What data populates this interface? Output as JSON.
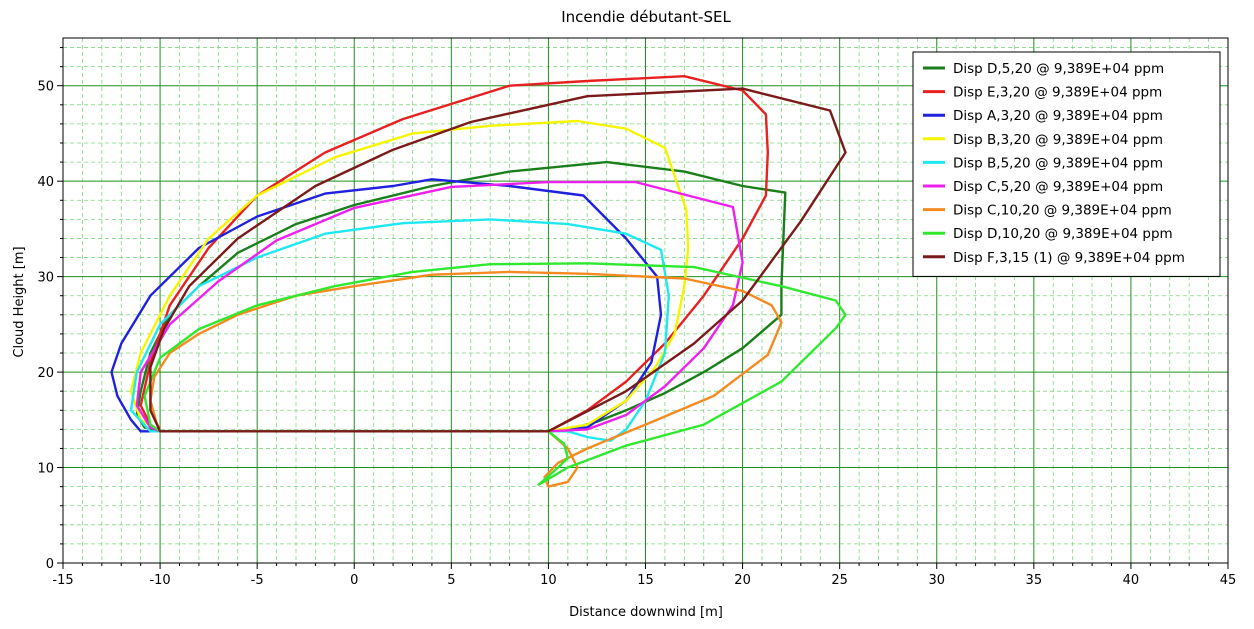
{
  "chart_data": {
    "type": "line",
    "title": "Incendie débutant-SEL",
    "xlabel": "Distance downwind [m]",
    "ylabel": "Cloud Height [m]",
    "xlim": [
      -15,
      45
    ],
    "ylim": [
      0,
      55
    ],
    "xticks": [
      -15,
      -10,
      -5,
      0,
      5,
      10,
      15,
      20,
      25,
      30,
      35,
      40,
      45
    ],
    "yticks": [
      0,
      10,
      20,
      30,
      40,
      50
    ],
    "grid": true,
    "legend_position": "top-right",
    "series": [
      {
        "name": "Disp D,5,20 @ 9,389E+04 ppm",
        "color": "#1a7f1a",
        "x": [
          -10,
          10,
          11,
          12.5,
          14,
          16,
          18,
          20,
          22,
          22,
          22.2,
          20,
          17,
          13,
          8,
          4,
          0,
          -3,
          -6,
          -8,
          -9.5,
          -10.5,
          -11,
          -11.2,
          -10.8,
          -10
        ],
        "y": [
          13.8,
          13.8,
          14,
          14.8,
          16,
          17.8,
          20,
          22.5,
          26,
          29,
          38.8,
          39.5,
          41,
          42,
          41,
          39.5,
          37.5,
          35.5,
          32.5,
          29,
          26,
          22,
          18,
          15.5,
          14.2,
          13.8
        ]
      },
      {
        "name": "Disp E,3,20 @ 9,389E+04 ppm",
        "color": "#e82020",
        "x": [
          -10,
          10,
          12,
          14,
          16,
          18,
          20,
          21.2,
          21.3,
          21.2,
          20,
          17,
          12,
          8,
          2.5,
          -1.5,
          -5,
          -7.5,
          -9.5,
          -10.5,
          -11,
          -10.5,
          -10
        ],
        "y": [
          13.8,
          13.8,
          16,
          19,
          23,
          28,
          34,
          38.5,
          43,
          47,
          49.5,
          51,
          50.5,
          50,
          46.5,
          43,
          38.5,
          33,
          27,
          21,
          16.5,
          14.5,
          13.8
        ]
      },
      {
        "name": "Disp A,3,20 @ 9,389E+04 ppm",
        "color": "#2020e0",
        "x": [
          -11,
          -10,
          10,
          12,
          14,
          15.3,
          15.8,
          15.6,
          14,
          11.8,
          8,
          4,
          2,
          -1.5,
          -5,
          -8,
          -10.5,
          -12,
          -12.5,
          -12.2,
          -11.5,
          -11
        ],
        "y": [
          13.8,
          13.8,
          13.8,
          14.2,
          17,
          21,
          26,
          30,
          34,
          38.5,
          39.5,
          40.2,
          39.5,
          38.7,
          36.3,
          33,
          28,
          23,
          20,
          17.5,
          15,
          13.8
        ]
      },
      {
        "name": "Disp B,3,20 @ 9,389E+04 ppm",
        "color": "#f5f500",
        "x": [
          -10,
          10,
          12,
          14,
          15.5,
          16.5,
          17,
          17.2,
          17.1,
          16,
          14,
          11.5,
          7,
          3,
          -1,
          -5,
          -7.5,
          -9.5,
          -11,
          -11.5,
          -11,
          -10
        ],
        "y": [
          13.8,
          13.8,
          14.5,
          17,
          20.5,
          24,
          29,
          33,
          37,
          43.5,
          45.5,
          46.3,
          45.8,
          45,
          42.5,
          38.5,
          34,
          28,
          22,
          18,
          15,
          13.8
        ]
      },
      {
        "name": "Disp B,5,20 @ 9,389E+04 ppm",
        "color": "#20e8f0",
        "x": [
          -10,
          10,
          11,
          12,
          13.2,
          14,
          15,
          16,
          16.2,
          15.8,
          14,
          11,
          7,
          2.5,
          -1.5,
          -5,
          -8,
          -10,
          -11.2,
          -11.5,
          -10.5,
          -10
        ],
        "y": [
          13.8,
          13.8,
          13.8,
          13.2,
          12.8,
          14,
          17,
          22,
          28,
          32.8,
          34.5,
          35.5,
          36,
          35.6,
          34.5,
          32,
          29,
          25,
          20,
          16,
          13.8,
          13.8
        ]
      },
      {
        "name": "Disp C,5,20 @ 9,389E+04 ppm",
        "color": "#ee20ee",
        "x": [
          -10,
          10,
          12,
          14,
          16,
          18,
          19.5,
          20,
          19.5,
          14.5,
          10,
          5,
          0,
          -4,
          -7,
          -9.5,
          -11,
          -11.2,
          -10.5,
          -10
        ],
        "y": [
          13.8,
          13.8,
          14,
          15.5,
          18.5,
          22.5,
          27,
          31.5,
          37.3,
          39.9,
          39.9,
          39.4,
          37.2,
          33.8,
          29.5,
          25,
          20,
          16.5,
          14.2,
          13.8
        ]
      },
      {
        "name": "Disp C,10,20 @ 9,389E+04 ppm",
        "color": "#f58a20",
        "x": [
          -10,
          10,
          11,
          11.5,
          11,
          10,
          9.8,
          10.5,
          12,
          15,
          18.5,
          21.3,
          22,
          21.5,
          20,
          17,
          12,
          8,
          4,
          0,
          -3,
          -6,
          -8,
          -9.5,
          -10.3,
          -10.5,
          -10.2,
          -10
        ],
        "y": [
          13.8,
          13.8,
          12,
          10,
          8.5,
          8,
          9,
          10.5,
          12,
          14.5,
          17.5,
          21.8,
          25.2,
          27,
          28.5,
          29.8,
          30.3,
          30.5,
          30.2,
          29,
          28,
          26,
          24,
          22,
          19.5,
          17,
          14.8,
          13.8
        ]
      },
      {
        "name": "Disp D,10,20 @ 9,389E+04 ppm",
        "color": "#30e830",
        "x": [
          -10,
          10,
          10.8,
          11,
          10.5,
          9.5,
          11,
          14,
          18,
          22,
          24.8,
          25.3,
          24.8,
          22,
          17.5,
          12,
          7,
          3,
          -1,
          -5,
          -8,
          -10,
          -10.8,
          -10.5,
          -10
        ],
        "y": [
          13.8,
          13.8,
          12.5,
          11,
          10,
          8.2,
          10,
          12.3,
          14.5,
          19,
          24.6,
          26,
          27.5,
          29,
          31,
          31.4,
          31.3,
          30.5,
          29,
          27,
          24.5,
          21.5,
          17.5,
          14.5,
          13.8
        ]
      },
      {
        "name": "Disp F,3,15 (1) @ 9,389E+04 ppm",
        "color": "#7a1a1a",
        "x": [
          -10,
          10,
          14,
          17.5,
          20,
          23,
          25.3,
          24.5,
          20,
          12,
          6,
          2,
          -2,
          -6,
          -8.5,
          -9.8,
          -10.5,
          -10.5,
          -10
        ],
        "y": [
          13.8,
          13.8,
          18,
          23,
          27.5,
          35.8,
          43,
          47.4,
          49.7,
          48.9,
          46.2,
          43.3,
          39.5,
          34,
          29,
          24.5,
          20.5,
          16,
          13.8
        ]
      }
    ]
  }
}
